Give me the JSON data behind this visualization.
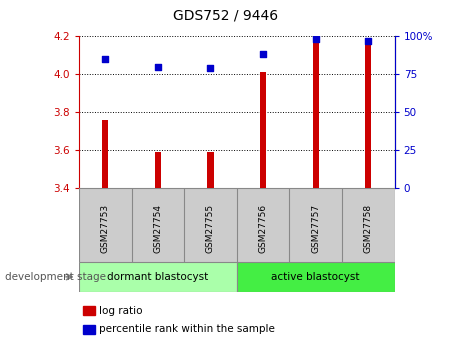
{
  "title": "GDS752 / 9446",
  "samples": [
    "GSM27753",
    "GSM27754",
    "GSM27755",
    "GSM27756",
    "GSM27757",
    "GSM27758"
  ],
  "log_ratio": [
    3.76,
    3.59,
    3.59,
    4.01,
    4.18,
    4.17
  ],
  "percentile_rank": [
    85,
    80,
    79,
    88,
    98,
    97
  ],
  "ylim_left": [
    3.4,
    4.2
  ],
  "ylim_right": [
    0,
    100
  ],
  "yticks_left": [
    3.4,
    3.6,
    3.8,
    4.0,
    4.2
  ],
  "yticks_right": [
    0,
    25,
    50,
    75,
    100
  ],
  "bar_color": "#cc0000",
  "dot_color": "#0000cc",
  "groups": [
    {
      "label": "dormant blastocyst",
      "indices": [
        0,
        1,
        2
      ],
      "color": "#aaffaa"
    },
    {
      "label": "active blastocyst",
      "indices": [
        3,
        4,
        5
      ],
      "color": "#44ee44"
    }
  ],
  "group_label": "development stage",
  "legend_bar": "log ratio",
  "legend_dot": "percentile rank within the sample",
  "tick_color_left": "#cc0000",
  "tick_color_right": "#0000cc",
  "grid_color": "#000000",
  "bg_color": "#ffffff",
  "plot_bg": "#ffffff",
  "sample_box_color": "#cccccc",
  "bar_width": 0.12
}
